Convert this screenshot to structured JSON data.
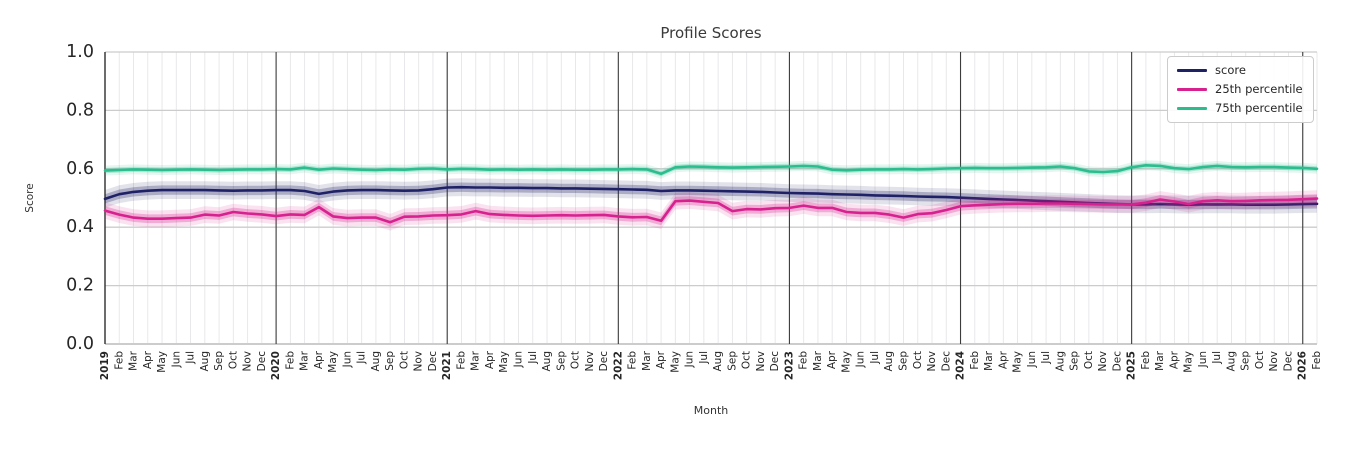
{
  "title": "Profile Scores",
  "chart_data": {
    "type": "line",
    "title": "Profile Scores",
    "xlabel": "Month",
    "ylabel": "Score",
    "ylim": [
      0.0,
      1.0
    ],
    "y_ticks": [
      0.0,
      0.2,
      0.4,
      0.6,
      0.8,
      1.0
    ],
    "grid": true,
    "legend_position": "upper right",
    "x_labels": [
      "2019",
      "Feb",
      "Mar",
      "Apr",
      "May",
      "Jun",
      "Jul",
      "Aug",
      "Sep",
      "Oct",
      "Nov",
      "Dec",
      "2020",
      "Feb",
      "Mar",
      "Apr",
      "May",
      "Jun",
      "Jul",
      "Aug",
      "Sep",
      "Oct",
      "Nov",
      "Dec",
      "2021",
      "Feb",
      "Mar",
      "Apr",
      "May",
      "Jun",
      "Jul",
      "Aug",
      "Sep",
      "Oct",
      "Nov",
      "Dec",
      "2022",
      "Feb",
      "Mar",
      "Apr",
      "May",
      "Jun",
      "Jul",
      "Aug",
      "Sep",
      "Oct",
      "Nov",
      "Dec",
      "2023",
      "Feb",
      "Mar",
      "Apr",
      "May",
      "Jun",
      "Jul",
      "Aug",
      "Sep",
      "Oct",
      "Nov",
      "Dec",
      "2024",
      "Feb",
      "Mar",
      "Apr",
      "May",
      "Jun",
      "Jul",
      "Aug",
      "Sep",
      "Oct",
      "Nov",
      "Dec",
      "2025",
      "Feb",
      "Mar",
      "Apr",
      "May",
      "Jun",
      "Jul",
      "Aug",
      "Sep",
      "Oct",
      "Nov",
      "Dec",
      "2026",
      "Feb"
    ],
    "series": [
      {
        "name": "score",
        "color": "#1f2166",
        "band_halfwidth": 0.016,
        "values": [
          0.497,
          0.513,
          0.521,
          0.525,
          0.527,
          0.527,
          0.527,
          0.527,
          0.526,
          0.525,
          0.526,
          0.526,
          0.527,
          0.527,
          0.524,
          0.514,
          0.522,
          0.526,
          0.527,
          0.527,
          0.526,
          0.525,
          0.526,
          0.53,
          0.536,
          0.537,
          0.536,
          0.536,
          0.535,
          0.535,
          0.534,
          0.534,
          0.533,
          0.533,
          0.532,
          0.531,
          0.53,
          0.529,
          0.528,
          0.524,
          0.526,
          0.526,
          0.525,
          0.524,
          0.523,
          0.522,
          0.521,
          0.519,
          0.517,
          0.516,
          0.515,
          0.513,
          0.512,
          0.511,
          0.509,
          0.508,
          0.507,
          0.505,
          0.504,
          0.503,
          0.501,
          0.499,
          0.497,
          0.495,
          0.493,
          0.491,
          0.489,
          0.487,
          0.485,
          0.483,
          0.481,
          0.479,
          0.478,
          0.478,
          0.479,
          0.478,
          0.477,
          0.478,
          0.478,
          0.478,
          0.477,
          0.477,
          0.477,
          0.478,
          0.479,
          0.48
        ]
      },
      {
        "name": "25th percentile",
        "color": "#d7218e",
        "band_halfwidth": 0.015,
        "values": [
          0.457,
          0.443,
          0.433,
          0.429,
          0.429,
          0.431,
          0.433,
          0.443,
          0.44,
          0.452,
          0.447,
          0.444,
          0.438,
          0.444,
          0.442,
          0.469,
          0.437,
          0.431,
          0.433,
          0.433,
          0.417,
          0.436,
          0.437,
          0.44,
          0.441,
          0.444,
          0.455,
          0.445,
          0.442,
          0.44,
          0.439,
          0.44,
          0.441,
          0.44,
          0.441,
          0.442,
          0.437,
          0.434,
          0.435,
          0.422,
          0.489,
          0.491,
          0.487,
          0.483,
          0.455,
          0.462,
          0.461,
          0.465,
          0.466,
          0.474,
          0.466,
          0.466,
          0.452,
          0.449,
          0.449,
          0.443,
          0.433,
          0.445,
          0.448,
          0.459,
          0.472,
          0.475,
          0.477,
          0.479,
          0.48,
          0.48,
          0.481,
          0.481,
          0.48,
          0.479,
          0.478,
          0.478,
          0.478,
          0.484,
          0.495,
          0.488,
          0.479,
          0.489,
          0.492,
          0.489,
          0.49,
          0.492,
          0.493,
          0.494,
          0.496,
          0.498
        ]
      },
      {
        "name": "75th percentile",
        "color": "#2bbd8e",
        "band_halfwidth": 0.009,
        "values": [
          0.594,
          0.596,
          0.598,
          0.597,
          0.596,
          0.597,
          0.598,
          0.597,
          0.596,
          0.597,
          0.598,
          0.598,
          0.599,
          0.598,
          0.604,
          0.597,
          0.601,
          0.599,
          0.597,
          0.596,
          0.598,
          0.597,
          0.6,
          0.601,
          0.598,
          0.6,
          0.599,
          0.597,
          0.598,
          0.597,
          0.598,
          0.597,
          0.598,
          0.597,
          0.597,
          0.598,
          0.598,
          0.599,
          0.598,
          0.583,
          0.605,
          0.608,
          0.607,
          0.605,
          0.604,
          0.605,
          0.606,
          0.607,
          0.608,
          0.61,
          0.608,
          0.597,
          0.595,
          0.597,
          0.598,
          0.598,
          0.599,
          0.598,
          0.599,
          0.601,
          0.602,
          0.603,
          0.602,
          0.602,
          0.603,
          0.604,
          0.605,
          0.608,
          0.602,
          0.591,
          0.589,
          0.592,
          0.605,
          0.612,
          0.61,
          0.602,
          0.599,
          0.606,
          0.61,
          0.606,
          0.605,
          0.606,
          0.606,
          0.604,
          0.603,
          0.6
        ]
      }
    ],
    "colors": {
      "grid_minor": "#e6e6e9",
      "grid_major": "#cccccc",
      "year_line": "#3c3c3c",
      "spine": "#2e2e2e",
      "tick_label": "#262626"
    }
  }
}
